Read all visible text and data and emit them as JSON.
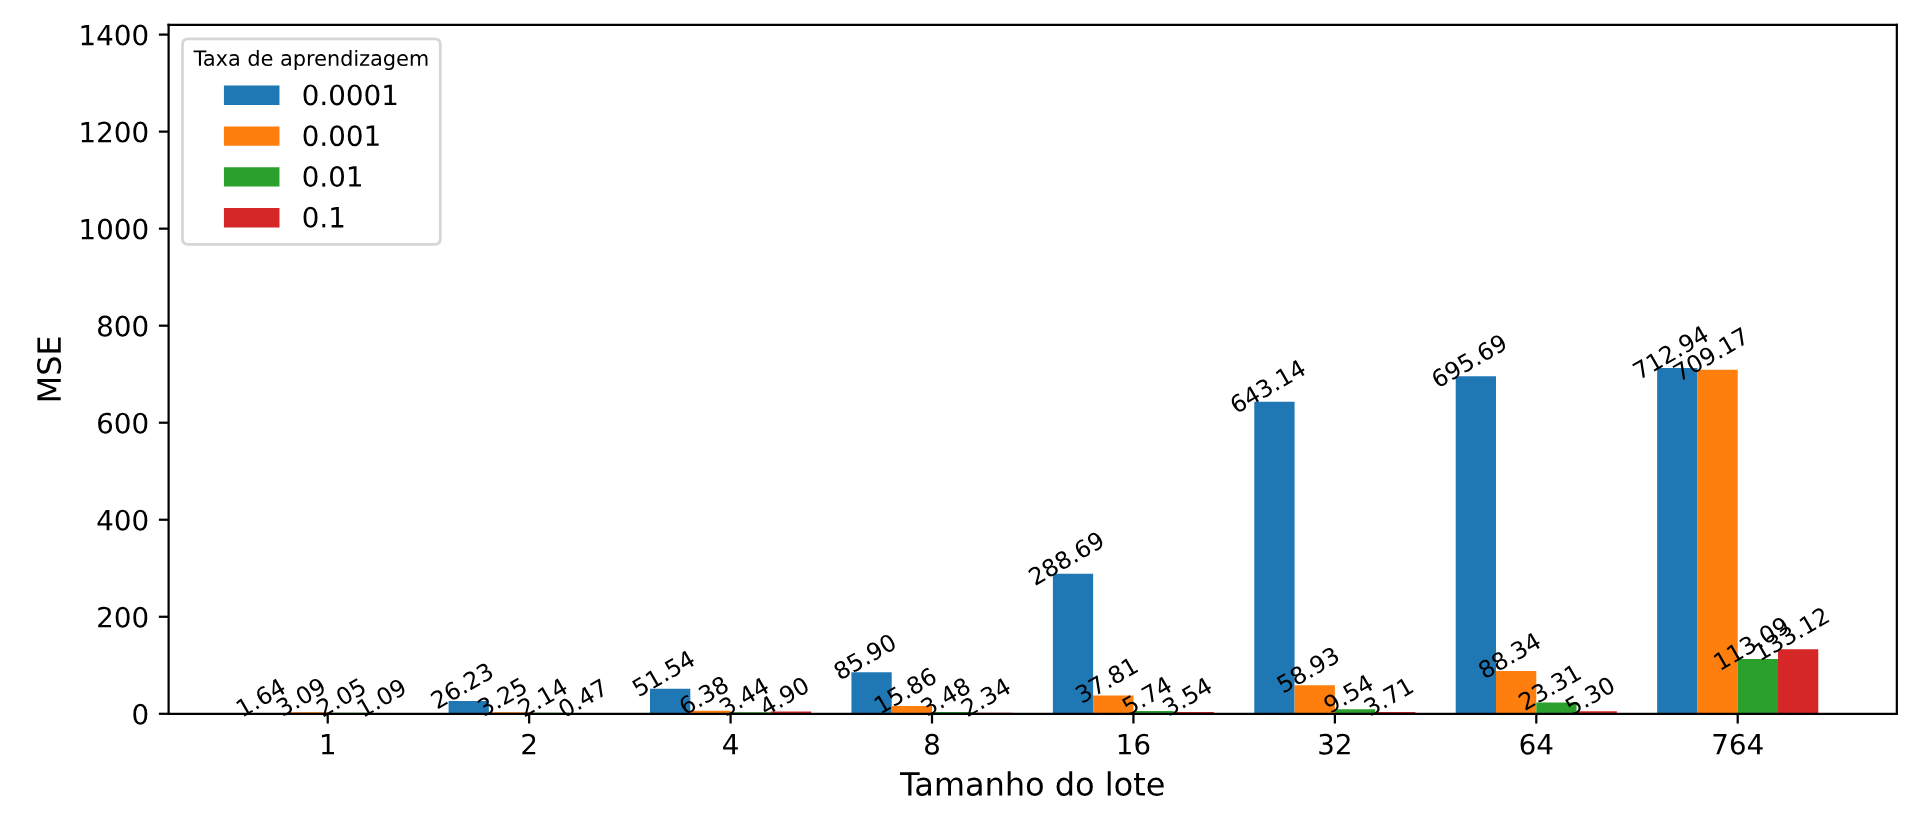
{
  "chart_data": {
    "type": "bar",
    "xlabel": "Tamanho do lote",
    "ylabel": "MSE",
    "legend_title": "Taxa de aprendizagem",
    "categories": [
      "1",
      "2",
      "4",
      "8",
      "16",
      "32",
      "64",
      "764"
    ],
    "series": [
      {
        "name": "0.0001",
        "color": "#1f77b4",
        "values": [
          1.64,
          26.23,
          51.54,
          85.9,
          288.69,
          643.14,
          695.69,
          712.94
        ],
        "value_labels": [
          "1.64",
          "26.23",
          "51.54",
          "85.90",
          "288.69",
          "643.14",
          "695.69",
          "712.94"
        ]
      },
      {
        "name": "0.001",
        "color": "#ff7f0e",
        "values": [
          3.09,
          3.25,
          6.38,
          15.86,
          37.81,
          58.93,
          88.34,
          709.17
        ],
        "value_labels": [
          "3.09",
          "3.25",
          "6.38",
          "15.86",
          "37.81",
          "58.93",
          "88.34",
          "709.17"
        ]
      },
      {
        "name": "0.01",
        "color": "#2ca02c",
        "values": [
          2.05,
          2.14,
          3.44,
          3.48,
          5.74,
          9.54,
          23.31,
          113.09
        ],
        "value_labels": [
          "2.05",
          "2.14",
          "3.44",
          "3.48",
          "5.74",
          "9.54",
          "23.31",
          "113.09"
        ]
      },
      {
        "name": "0.1",
        "color": "#d62728",
        "values": [
          1.09,
          0.47,
          4.9,
          2.34,
          3.54,
          3.71,
          5.3,
          133.12
        ],
        "value_labels": [
          "1.09",
          "0.47",
          "4.90",
          "2.34",
          "3.54",
          "3.71",
          "5.30",
          "133.12"
        ]
      }
    ],
    "ylim": [
      0,
      1420
    ],
    "yticks": [
      0,
      200,
      400,
      600,
      800,
      1000,
      1200,
      1400
    ],
    "legend": "top left",
    "grid": false
  }
}
